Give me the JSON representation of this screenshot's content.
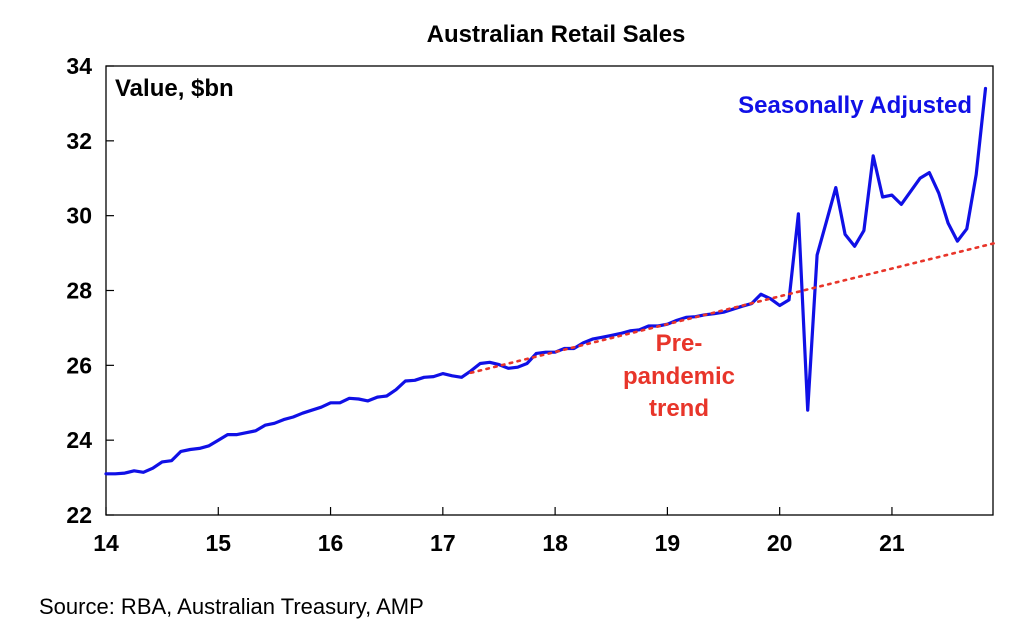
{
  "chart_data": {
    "type": "line",
    "title": "Australian Retail Sales",
    "ylabel": "Value, $bn",
    "xlabel": "",
    "xlim": [
      14,
      21.9
    ],
    "ylim": [
      22,
      34
    ],
    "x_ticks": [
      14,
      15,
      16,
      17,
      18,
      19,
      20,
      21
    ],
    "x_tick_labels": [
      "14",
      "15",
      "16",
      "17",
      "18",
      "19",
      "20",
      "21"
    ],
    "y_ticks": [
      22,
      24,
      26,
      28,
      30,
      32,
      34
    ],
    "y_tick_labels": [
      "22",
      "24",
      "26",
      "28",
      "30",
      "32",
      "34"
    ],
    "grid": false,
    "colors": {
      "seasonally_adjusted": "#1010e6",
      "pre_pandemic_trend": "#e8352a",
      "axis": "#000000"
    },
    "series": [
      {
        "name": "Seasonally Adjusted",
        "label_lines": [
          "Seasonally Adjusted"
        ],
        "style": "solid",
        "x": [
          14.0,
          14.083,
          14.167,
          14.25,
          14.333,
          14.417,
          14.5,
          14.583,
          14.667,
          14.75,
          14.833,
          14.917,
          15.0,
          15.083,
          15.167,
          15.25,
          15.333,
          15.417,
          15.5,
          15.583,
          15.667,
          15.75,
          15.833,
          15.917,
          16.0,
          16.083,
          16.167,
          16.25,
          16.333,
          16.417,
          16.5,
          16.583,
          16.667,
          16.75,
          16.833,
          16.917,
          17.0,
          17.083,
          17.167,
          17.25,
          17.333,
          17.417,
          17.5,
          17.583,
          17.667,
          17.75,
          17.833,
          17.917,
          18.0,
          18.083,
          18.167,
          18.25,
          18.333,
          18.417,
          18.5,
          18.583,
          18.667,
          18.75,
          18.833,
          18.917,
          19.0,
          19.083,
          19.167,
          19.25,
          19.333,
          19.417,
          19.5,
          19.583,
          19.667,
          19.75,
          19.833,
          19.917,
          20.0,
          20.083,
          20.167,
          20.25,
          20.333,
          20.417,
          20.5,
          20.583,
          20.667,
          20.75,
          20.833,
          20.917,
          21.0,
          21.083,
          21.167,
          21.25,
          21.333,
          21.417,
          21.5,
          21.583,
          21.667,
          21.75,
          21.833
        ],
        "values": [
          23.1,
          23.1,
          23.12,
          23.18,
          23.14,
          23.25,
          23.42,
          23.45,
          23.7,
          23.75,
          23.78,
          23.85,
          24.0,
          24.15,
          24.15,
          24.2,
          24.25,
          24.4,
          24.45,
          24.55,
          24.62,
          24.72,
          24.8,
          24.88,
          25.0,
          25.0,
          25.12,
          25.1,
          25.05,
          25.15,
          25.18,
          25.35,
          25.58,
          25.6,
          25.68,
          25.7,
          25.78,
          25.72,
          25.68,
          25.85,
          26.05,
          26.08,
          26.02,
          25.92,
          25.95,
          26.05,
          26.32,
          26.35,
          26.35,
          26.45,
          26.45,
          26.6,
          26.7,
          26.75,
          26.8,
          26.85,
          26.92,
          26.95,
          27.05,
          27.05,
          27.1,
          27.2,
          27.28,
          27.3,
          27.35,
          27.38,
          27.42,
          27.5,
          27.58,
          27.65,
          27.9,
          27.78,
          27.6,
          27.75,
          30.05,
          24.8,
          28.95,
          29.85,
          30.75,
          29.5,
          29.18,
          29.6,
          31.6,
          30.5,
          30.55,
          30.3,
          30.65,
          31.0,
          31.15,
          30.6,
          29.8,
          29.32,
          29.65,
          31.1,
          33.4
        ]
      },
      {
        "name": "Pre-pandemic trend",
        "label_lines": [
          "Pre-",
          "pandemic",
          "trend"
        ],
        "style": "dotted",
        "x": [
          17.25,
          21.92
        ],
        "values": [
          25.8,
          29.27
        ]
      }
    ]
  },
  "source": "Source: RBA, Australian Treasury, AMP"
}
